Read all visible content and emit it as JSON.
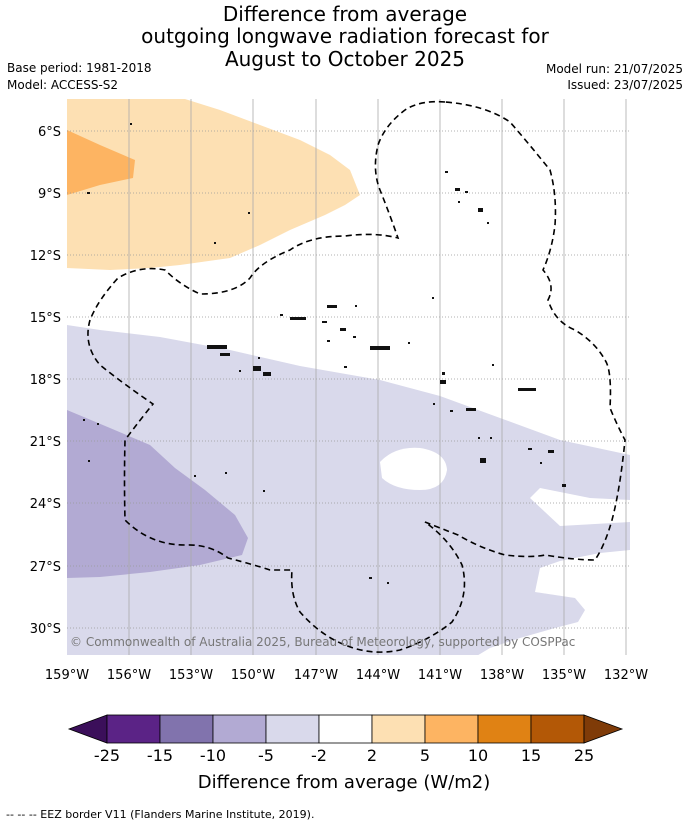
{
  "title": {
    "line1": "Difference from average",
    "line2": "outgoing longwave radiation forecast for",
    "line3": "August to October 2025"
  },
  "meta": {
    "base_period": "Base period: 1981-2018",
    "model": "Model: ACCESS-S2",
    "model_run": "Model run: 21/07/2025",
    "issued": "Issued: 23/07/2025"
  },
  "map": {
    "copyright": "© Commonwealth of Australia 2025, Bureau of Meteorology, supported by COSPPac",
    "lat_labels": [
      "6°S",
      "9°S",
      "12°S",
      "15°S",
      "18°S",
      "21°S",
      "24°S",
      "27°S",
      "30°S"
    ],
    "lon_labels": [
      "159°W",
      "156°W",
      "153°W",
      "150°W",
      "147°W",
      "144°W",
      "141°W",
      "138°W",
      "135°W",
      "132°W"
    ]
  },
  "colorbar": {
    "ticks": [
      "-25",
      "-15",
      "-10",
      "-5",
      "-2",
      "2",
      "5",
      "10",
      "15",
      "25"
    ],
    "colors": [
      "#3b0f5a",
      "#5b2386",
      "#8173ad",
      "#b2aad3",
      "#d9d9eb",
      "#ffffff",
      "#fde0b3",
      "#fdb462",
      "#e08214",
      "#b35806",
      "#7f3b08"
    ],
    "label": "Difference from average (W/m2)"
  },
  "footer": {
    "legend": "--  --  -- EEZ border V11 (Flanders Marine Institute, 2019)."
  }
}
